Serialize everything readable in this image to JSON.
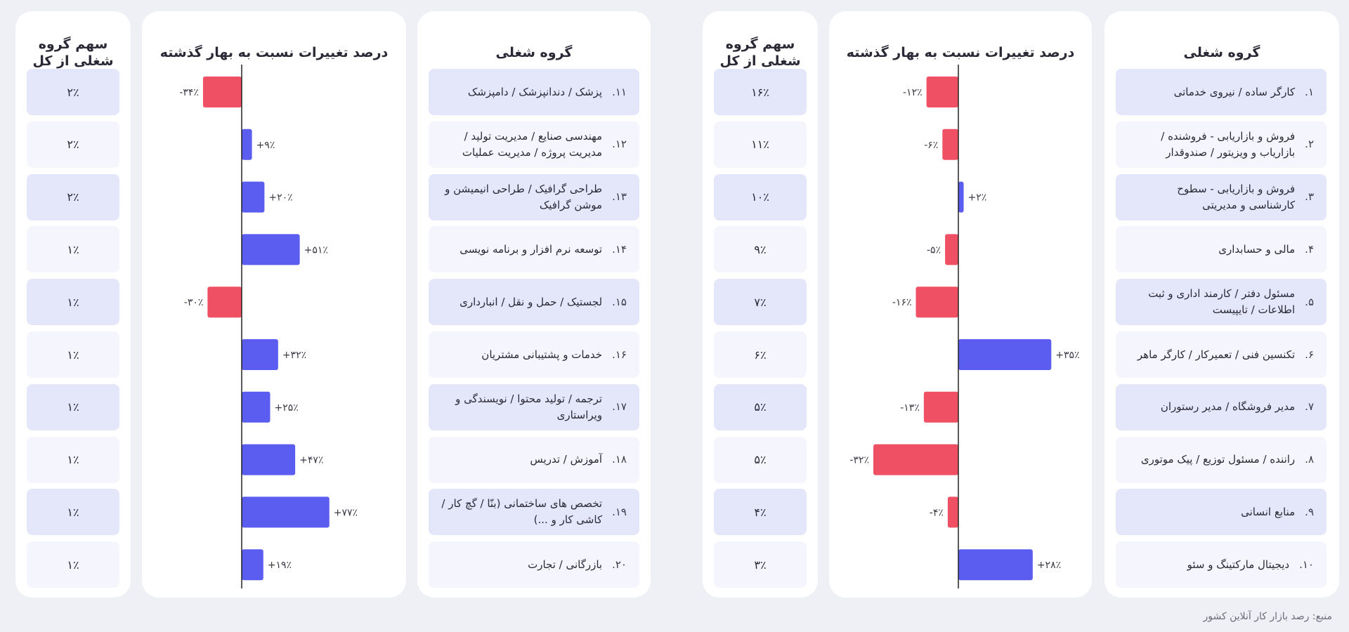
{
  "headers": {
    "group": "گروه شغلی",
    "change": "درصد تغییرات نسبت به بهار گذشته",
    "share_line1": "سهم گروه",
    "share_line2": "شغلی از کل"
  },
  "source": "منبع: رصد بازار کار آنلاین کشور",
  "colors": {
    "positive": "#5b5cf0",
    "negative": "#ef5064",
    "axis": "#222222"
  },
  "chart_data": [
    {
      "type": "bar",
      "orientation": "horizontal",
      "categories": [
        "کارگر ساده / نیروی خدماتی",
        "فروش و بازاریابی - فروشنده / بازاریاب و ویزیتور / صندوقدار",
        "فروش و بازاریابی - سطوح کارشناسی و مدیریتی",
        "مالی و حسابداری",
        "مسئول دفتر / کارمند اداری و ثبت اطلاعات / تایپیست",
        "تکنسین فنی / تعمیرکار / کارگر ماهر",
        "مدیر فروشگاه / مدیر رستوران",
        "راننده / مسئول توزیع / پیک موتوری",
        "منابع انسانی",
        "دیجیتال مارکتینگ و سئو"
      ],
      "numbers": [
        "۱.",
        "۲.",
        "۳.",
        "۴.",
        "۵.",
        "۶.",
        "۷.",
        "۸.",
        "۹.",
        "۱۰."
      ],
      "values": [
        -12,
        -6,
        2,
        -5,
        -16,
        35,
        -13,
        -32,
        -4,
        28
      ],
      "value_labels": [
        "-۱۲٪",
        "-۶٪",
        "+۲٪",
        "-۵٪",
        "-۱۶٪",
        "+۳۵٪",
        "-۱۳٪",
        "-۳۲٪",
        "-۴٪",
        "+۲۸٪"
      ],
      "shares": [
        "۱۶٪",
        "۱۱٪",
        "۱۰٪",
        "۹٪",
        "۷٪",
        "۶٪",
        "۵٪",
        "۵٪",
        "۴٪",
        "۳٪"
      ]
    },
    {
      "type": "bar",
      "orientation": "horizontal",
      "categories": [
        "پزشک / دندانپزشک / دامپزشک",
        "مهندسی صنایع / مدیریت تولید / مدیریت پروژه / مدیریت عملیات",
        "طراحی گرافیک / طراحی انیمیشن و موشن گرافیک",
        "توسعه نرم افزار و برنامه نویسی",
        "لجستیک / حمل و نقل / انبارداری",
        "خدمات و پشتیبانی مشتریان",
        "ترجمه / تولید محتوا / نویسندگی و ویراستاری",
        "آموزش / تدریس",
        "تخصص های ساختمانی (بنّا / گچ کار / کاشی کار و ...)",
        "بازرگانی / تجارت"
      ],
      "numbers": [
        "۱۱.",
        "۱۲.",
        "۱۳.",
        "۱۴.",
        "۱۵.",
        "۱۶.",
        "۱۷.",
        "۱۸.",
        "۱۹.",
        "۲۰."
      ],
      "values": [
        -34,
        9,
        20,
        51,
        -30,
        32,
        25,
        47,
        77,
        19
      ],
      "value_labels": [
        "-۳۴٪",
        "+۹٪",
        "+۲۰٪",
        "+۵۱٪",
        "-۳۰٪",
        "+۳۲٪",
        "+۲۵٪",
        "+۴۷٪",
        "+۷۷٪",
        "+۱۹٪"
      ],
      "shares": [
        "۲٪",
        "۲٪",
        "۲٪",
        "۱٪",
        "۱٪",
        "۱٪",
        "۱٪",
        "۱٪",
        "۱٪",
        "۱٪"
      ]
    }
  ]
}
